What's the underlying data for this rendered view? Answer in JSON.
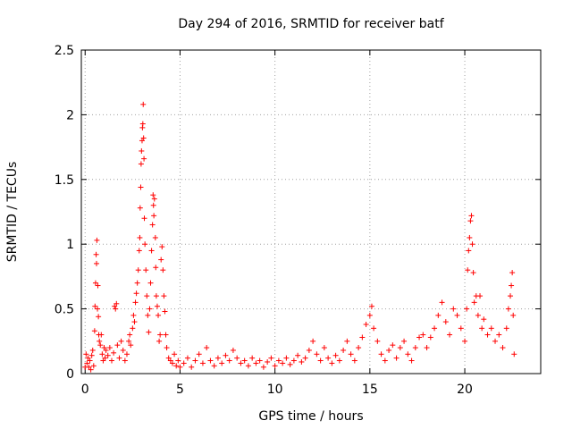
{
  "chart_data": {
    "type": "scatter",
    "title": "Day 294 of 2016, SRMTID for receiver batf",
    "xlabel": "GPS time / hours",
    "ylabel": "SRMTID / TECUs",
    "xlim": [
      -0.2,
      24
    ],
    "ylim": [
      0,
      2.5
    ],
    "x_ticks": [
      0,
      5,
      10,
      15,
      20
    ],
    "y_ticks": [
      0,
      0.5,
      1,
      1.5,
      2,
      2.5
    ],
    "x_tick_labels": [
      "0",
      "5",
      "10",
      "15",
      "20"
    ],
    "y_tick_labels": [
      "0",
      "0.5",
      "1",
      "1.5",
      "2",
      "2.5"
    ],
    "grid": true,
    "marker": "+",
    "color": "#ff0000",
    "series": [
      {
        "points": [
          [
            0.0,
            0.05
          ],
          [
            0.05,
            0.15
          ],
          [
            0.1,
            0.08
          ],
          [
            0.15,
            0.12
          ],
          [
            0.2,
            0.05
          ],
          [
            0.25,
            0.1
          ],
          [
            0.3,
            0.03
          ],
          [
            0.35,
            0.14
          ],
          [
            0.4,
            0.18
          ],
          [
            0.45,
            0.06
          ],
          [
            0.5,
            0.33
          ],
          [
            0.52,
            0.52
          ],
          [
            0.55,
            0.7
          ],
          [
            0.58,
            0.92
          ],
          [
            0.6,
            0.85
          ],
          [
            0.62,
            1.03
          ],
          [
            0.65,
            0.5
          ],
          [
            0.67,
            0.68
          ],
          [
            0.7,
            0.44
          ],
          [
            0.72,
            0.3
          ],
          [
            0.75,
            0.25
          ],
          [
            0.8,
            0.22
          ],
          [
            0.85,
            0.3
          ],
          [
            0.9,
            0.15
          ],
          [
            0.95,
            0.1
          ],
          [
            1.0,
            0.2
          ],
          [
            1.05,
            0.12
          ],
          [
            1.1,
            0.18
          ],
          [
            1.2,
            0.14
          ],
          [
            1.3,
            0.2
          ],
          [
            1.4,
            0.1
          ],
          [
            1.5,
            0.16
          ],
          [
            1.55,
            0.52
          ],
          [
            1.6,
            0.5
          ],
          [
            1.65,
            0.54
          ],
          [
            1.7,
            0.22
          ],
          [
            1.8,
            0.12
          ],
          [
            1.9,
            0.25
          ],
          [
            2.0,
            0.18
          ],
          [
            2.1,
            0.1
          ],
          [
            2.2,
            0.15
          ],
          [
            2.3,
            0.25
          ],
          [
            2.35,
            0.3
          ],
          [
            2.4,
            0.22
          ],
          [
            2.5,
            0.35
          ],
          [
            2.55,
            0.45
          ],
          [
            2.6,
            0.4
          ],
          [
            2.65,
            0.55
          ],
          [
            2.7,
            0.62
          ],
          [
            2.75,
            0.7
          ],
          [
            2.8,
            0.8
          ],
          [
            2.85,
            0.95
          ],
          [
            2.88,
            1.05
          ],
          [
            2.9,
            1.28
          ],
          [
            2.93,
            1.44
          ],
          [
            2.95,
            1.62
          ],
          [
            2.97,
            1.72
          ],
          [
            3.0,
            1.8
          ],
          [
            3.02,
            1.9
          ],
          [
            3.04,
            1.93
          ],
          [
            3.06,
            2.08
          ],
          [
            3.08,
            1.82
          ],
          [
            3.1,
            1.66
          ],
          [
            3.12,
            1.2
          ],
          [
            3.15,
            1.0
          ],
          [
            3.2,
            0.8
          ],
          [
            3.25,
            0.6
          ],
          [
            3.3,
            0.45
          ],
          [
            3.35,
            0.32
          ],
          [
            3.4,
            0.5
          ],
          [
            3.45,
            0.7
          ],
          [
            3.5,
            0.95
          ],
          [
            3.55,
            1.15
          ],
          [
            3.58,
            1.38
          ],
          [
            3.6,
            1.3
          ],
          [
            3.62,
            1.22
          ],
          [
            3.65,
            1.35
          ],
          [
            3.7,
            1.05
          ],
          [
            3.72,
            0.82
          ],
          [
            3.75,
            0.6
          ],
          [
            3.8,
            0.52
          ],
          [
            3.85,
            0.45
          ],
          [
            3.9,
            0.25
          ],
          [
            3.95,
            0.3
          ],
          [
            4.0,
            0.88
          ],
          [
            4.05,
            0.98
          ],
          [
            4.1,
            0.8
          ],
          [
            4.15,
            0.6
          ],
          [
            4.2,
            0.48
          ],
          [
            4.25,
            0.3
          ],
          [
            4.3,
            0.2
          ],
          [
            4.4,
            0.12
          ],
          [
            4.5,
            0.1
          ],
          [
            4.6,
            0.08
          ],
          [
            4.7,
            0.15
          ],
          [
            4.8,
            0.06
          ],
          [
            4.9,
            0.1
          ],
          [
            5.0,
            0.05
          ],
          [
            5.2,
            0.08
          ],
          [
            5.4,
            0.12
          ],
          [
            5.6,
            0.05
          ],
          [
            5.8,
            0.1
          ],
          [
            6.0,
            0.15
          ],
          [
            6.2,
            0.08
          ],
          [
            6.4,
            0.2
          ],
          [
            6.6,
            0.1
          ],
          [
            6.8,
            0.06
          ],
          [
            7.0,
            0.12
          ],
          [
            7.2,
            0.08
          ],
          [
            7.4,
            0.14
          ],
          [
            7.6,
            0.1
          ],
          [
            7.8,
            0.18
          ],
          [
            8.0,
            0.12
          ],
          [
            8.2,
            0.08
          ],
          [
            8.4,
            0.1
          ],
          [
            8.6,
            0.06
          ],
          [
            8.8,
            0.12
          ],
          [
            9.0,
            0.08
          ],
          [
            9.2,
            0.1
          ],
          [
            9.4,
            0.05
          ],
          [
            9.6,
            0.09
          ],
          [
            9.8,
            0.12
          ],
          [
            10.0,
            0.06
          ],
          [
            10.2,
            0.1
          ],
          [
            10.4,
            0.08
          ],
          [
            10.6,
            0.12
          ],
          [
            10.8,
            0.07
          ],
          [
            11.0,
            0.1
          ],
          [
            11.2,
            0.14
          ],
          [
            11.4,
            0.09
          ],
          [
            11.6,
            0.12
          ],
          [
            11.8,
            0.18
          ],
          [
            12.0,
            0.25
          ],
          [
            12.2,
            0.15
          ],
          [
            12.4,
            0.1
          ],
          [
            12.6,
            0.2
          ],
          [
            12.8,
            0.12
          ],
          [
            13.0,
            0.08
          ],
          [
            13.2,
            0.14
          ],
          [
            13.4,
            0.1
          ],
          [
            13.6,
            0.18
          ],
          [
            13.8,
            0.25
          ],
          [
            14.0,
            0.15
          ],
          [
            14.2,
            0.1
          ],
          [
            14.4,
            0.2
          ],
          [
            14.6,
            0.28
          ],
          [
            14.8,
            0.38
          ],
          [
            15.0,
            0.45
          ],
          [
            15.1,
            0.52
          ],
          [
            15.2,
            0.35
          ],
          [
            15.4,
            0.25
          ],
          [
            15.6,
            0.15
          ],
          [
            15.8,
            0.1
          ],
          [
            16.0,
            0.18
          ],
          [
            16.2,
            0.22
          ],
          [
            16.4,
            0.12
          ],
          [
            16.6,
            0.2
          ],
          [
            16.8,
            0.25
          ],
          [
            17.0,
            0.15
          ],
          [
            17.2,
            0.1
          ],
          [
            17.4,
            0.2
          ],
          [
            17.6,
            0.28
          ],
          [
            17.8,
            0.3
          ],
          [
            18.0,
            0.2
          ],
          [
            18.2,
            0.28
          ],
          [
            18.4,
            0.35
          ],
          [
            18.6,
            0.45
          ],
          [
            18.8,
            0.55
          ],
          [
            19.0,
            0.4
          ],
          [
            19.2,
            0.3
          ],
          [
            19.4,
            0.5
          ],
          [
            19.6,
            0.45
          ],
          [
            19.8,
            0.35
          ],
          [
            20.0,
            0.25
          ],
          [
            20.1,
            0.5
          ],
          [
            20.15,
            0.8
          ],
          [
            20.2,
            0.95
          ],
          [
            20.25,
            1.05
          ],
          [
            20.3,
            1.18
          ],
          [
            20.35,
            1.22
          ],
          [
            20.4,
            1.0
          ],
          [
            20.45,
            0.78
          ],
          [
            20.5,
            0.55
          ],
          [
            20.6,
            0.6
          ],
          [
            20.7,
            0.45
          ],
          [
            20.8,
            0.6
          ],
          [
            20.9,
            0.35
          ],
          [
            21.0,
            0.42
          ],
          [
            21.2,
            0.3
          ],
          [
            21.4,
            0.35
          ],
          [
            21.6,
            0.25
          ],
          [
            21.8,
            0.3
          ],
          [
            22.0,
            0.2
          ],
          [
            22.2,
            0.35
          ],
          [
            22.3,
            0.5
          ],
          [
            22.4,
            0.6
          ],
          [
            22.45,
            0.68
          ],
          [
            22.5,
            0.78
          ],
          [
            22.55,
            0.45
          ],
          [
            22.6,
            0.15
          ]
        ]
      }
    ]
  }
}
